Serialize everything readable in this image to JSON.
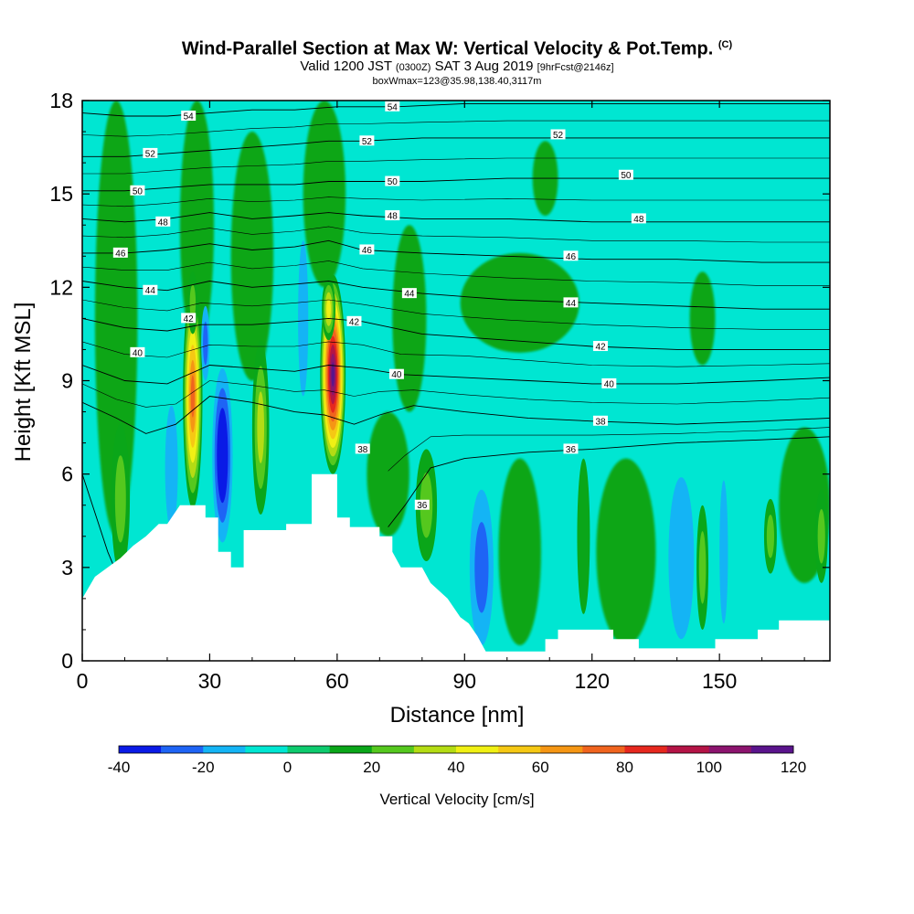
{
  "title": {
    "main": "Wind-Parallel Section at Max W: Vertical Velocity & Pot.Temp.",
    "copyright": "(C)",
    "valid_prefix": "Valid 1200 JST",
    "valid_utc": "(0300Z)",
    "valid_date": "SAT 3 Aug 2019",
    "forecast": "[9hrFcst@2146z]",
    "box": "boxWmax=123@35.98,138.40,3117m"
  },
  "chart_data": {
    "type": "heatmap",
    "xlabel": "Distance [nm]",
    "ylabel": "Height [Kft MSL]",
    "xlim": [
      0,
      176
    ],
    "ylim": [
      0,
      18
    ],
    "x_ticks": [
      "0",
      "30",
      "60",
      "90",
      "120",
      "150"
    ],
    "y_ticks": [
      "0",
      "3",
      "6",
      "9",
      "12",
      "15",
      "18"
    ],
    "colorbar": {
      "label": "Vertical Velocity [cm/s]",
      "levels": [
        -40,
        -30,
        -20,
        -10,
        0,
        10,
        20,
        30,
        40,
        50,
        60,
        70,
        80,
        90,
        100,
        110,
        120
      ],
      "tick_labels": [
        "-40",
        "-20",
        "0",
        "20",
        "40",
        "60",
        "80",
        "100",
        "120"
      ],
      "colors": [
        "#0a1ae6",
        "#1e64f5",
        "#14b4f5",
        "#00e6d2",
        "#0ecb6e",
        "#0aa619",
        "#55c81e",
        "#b4dc14",
        "#f0f014",
        "#f5c814",
        "#f59614",
        "#f0641e",
        "#e6281e",
        "#b41446",
        "#8c146e",
        "#5a148c"
      ]
    },
    "background_level_color": "#00e6d2",
    "terrain_height_kft": [
      [
        0,
        2
      ],
      [
        3,
        2.7
      ],
      [
        6,
        3
      ],
      [
        9,
        3.3
      ],
      [
        12,
        3.7
      ],
      [
        15,
        4
      ],
      [
        18,
        4.4
      ],
      [
        20,
        4.4
      ],
      [
        23,
        5
      ],
      [
        29,
        5
      ],
      [
        29,
        4.6
      ],
      [
        32,
        4.6
      ],
      [
        32,
        3.5
      ],
      [
        35,
        3.5
      ],
      [
        35,
        3
      ],
      [
        38,
        3
      ],
      [
        38,
        4.2
      ],
      [
        48,
        4.2
      ],
      [
        48,
        4.4
      ],
      [
        54,
        4.4
      ],
      [
        54,
        6
      ],
      [
        60,
        6
      ],
      [
        60,
        4.6
      ],
      [
        63,
        4.6
      ],
      [
        63,
        4.3
      ],
      [
        70,
        4.3
      ],
      [
        70,
        4
      ],
      [
        73,
        4
      ],
      [
        73,
        3.5
      ],
      [
        75,
        3
      ],
      [
        80,
        3
      ],
      [
        82,
        2.5
      ],
      [
        86,
        2
      ],
      [
        89,
        1.4
      ],
      [
        91,
        1.2
      ],
      [
        93,
        0.8
      ],
      [
        95,
        0.3
      ],
      [
        109,
        0.3
      ],
      [
        109,
        0.7
      ],
      [
        112,
        0.7
      ],
      [
        112,
        1
      ],
      [
        125,
        1
      ],
      [
        125,
        0.7
      ],
      [
        131,
        0.7
      ],
      [
        131,
        0.4
      ],
      [
        149,
        0.4
      ],
      [
        149,
        0.7
      ],
      [
        159,
        0.7
      ],
      [
        159,
        1
      ],
      [
        164,
        1
      ],
      [
        164,
        1.3
      ],
      [
        176,
        1.3
      ]
    ],
    "vertical_velocity_cells": [
      {
        "x": 26,
        "y": 8.5,
        "rx": 2.3,
        "ry": 3.6,
        "w": 70
      },
      {
        "x": 26,
        "y": 11.5,
        "rx": 1.2,
        "ry": 1.0,
        "w": 20
      },
      {
        "x": 59,
        "y": 9.2,
        "rx": 3.0,
        "ry": 3.2,
        "w": 110
      },
      {
        "x": 58,
        "y": 11.3,
        "rx": 1.6,
        "ry": 1.0,
        "w": 40
      },
      {
        "x": 42,
        "y": 7.5,
        "rx": 2.0,
        "ry": 2.8,
        "w": 30
      },
      {
        "x": 81,
        "y": 5.0,
        "rx": 2.5,
        "ry": 1.8,
        "w": 20
      },
      {
        "x": 33,
        "y": 6.6,
        "rx": 2.4,
        "ry": 2.8,
        "w": -40
      },
      {
        "x": 29,
        "y": 10.2,
        "rx": 1.0,
        "ry": 1.2,
        "w": -20
      },
      {
        "x": 21,
        "y": 6.2,
        "rx": 1.5,
        "ry": 2.0,
        "w": -10
      },
      {
        "x": 52,
        "y": 11.0,
        "rx": 1.2,
        "ry": 2.5,
        "w": -10
      },
      {
        "x": 9,
        "y": 5.2,
        "rx": 2.2,
        "ry": 2.4,
        "w": 20
      },
      {
        "x": 94,
        "y": 3.0,
        "rx": 2.8,
        "ry": 2.5,
        "w": -20
      },
      {
        "x": 141,
        "y": 3.3,
        "rx": 3.0,
        "ry": 2.6,
        "w": -10
      },
      {
        "x": 146,
        "y": 3.0,
        "rx": 1.4,
        "ry": 2.0,
        "w": 20
      },
      {
        "x": 151,
        "y": 3.5,
        "rx": 1.0,
        "ry": 2.3,
        "w": -10
      },
      {
        "x": 162,
        "y": 4.0,
        "rx": 1.5,
        "ry": 1.2,
        "w": 20
      },
      {
        "x": 174,
        "y": 4.0,
        "rx": 1.5,
        "ry": 1.5,
        "w": 20
      },
      {
        "x": 118,
        "y": 4.0,
        "rx": 1.5,
        "ry": 2.5,
        "w": 10
      }
    ],
    "green_bands": [
      {
        "x": 8,
        "y": 11,
        "rx": 5,
        "ry": 7,
        "w": 10
      },
      {
        "x": 27,
        "y": 14,
        "rx": 4,
        "ry": 4,
        "w": 10
      },
      {
        "x": 40,
        "y": 13,
        "rx": 5,
        "ry": 4,
        "w": 10
      },
      {
        "x": 57,
        "y": 15,
        "rx": 5,
        "ry": 3,
        "w": 10
      },
      {
        "x": 77,
        "y": 11,
        "rx": 4,
        "ry": 3,
        "w": 10
      },
      {
        "x": 103,
        "y": 11.5,
        "rx": 14,
        "ry": 1.6,
        "w": 10
      },
      {
        "x": 109,
        "y": 15.5,
        "rx": 3,
        "ry": 1.2,
        "w": 10
      },
      {
        "x": 146,
        "y": 11,
        "rx": 3,
        "ry": 1.5,
        "w": 10
      },
      {
        "x": 103,
        "y": 3.5,
        "rx": 5,
        "ry": 3,
        "w": 10
      },
      {
        "x": 128,
        "y": 3.5,
        "rx": 7,
        "ry": 3,
        "w": 10
      },
      {
        "x": 170,
        "y": 5,
        "rx": 6,
        "ry": 2.5,
        "w": 10
      },
      {
        "x": 72,
        "y": 6,
        "rx": 5,
        "ry": 2,
        "w": 10
      }
    ],
    "theta_contours": [
      {
        "level": "36",
        "pts": [
          [
            0,
            6
          ],
          [
            6,
            3.5
          ],
          [
            10,
            2.2
          ],
          [
            13,
            1.8
          ]
        ],
        "label_at": null
      },
      {
        "level": "36",
        "pts": [
          [
            72,
            4.3
          ],
          [
            76,
            5
          ],
          [
            82,
            6.2
          ],
          [
            90,
            6.5
          ],
          [
            105,
            6.7
          ],
          [
            120,
            6.8
          ],
          [
            140,
            7.0
          ],
          [
            160,
            7.1
          ],
          [
            176,
            7.2
          ]
        ],
        "label_at": [
          80,
          5.0
        ]
      },
      {
        "level": "38",
        "pts": [
          [
            0,
            8.3
          ],
          [
            8,
            7.8
          ],
          [
            15,
            7.3
          ],
          [
            22,
            7.6
          ],
          [
            30,
            8.5
          ],
          [
            40,
            8.3
          ],
          [
            50,
            8.0
          ],
          [
            57,
            7.9
          ],
          [
            64,
            7.6
          ],
          [
            70,
            7.9
          ],
          [
            78,
            8.2
          ],
          [
            90,
            8.0
          ],
          [
            105,
            7.8
          ],
          [
            120,
            7.7
          ],
          [
            140,
            7.6
          ],
          [
            160,
            7.7
          ],
          [
            176,
            7.8
          ]
        ],
        "label_at": [
          66,
          6.8
        ]
      },
      {
        "level": "40",
        "pts": [
          [
            0,
            9.5
          ],
          [
            10,
            9.0
          ],
          [
            20,
            8.9
          ],
          [
            30,
            9.5
          ],
          [
            40,
            9.4
          ],
          [
            50,
            9.3
          ],
          [
            58,
            9.5
          ],
          [
            66,
            9.4
          ],
          [
            75,
            9.2
          ],
          [
            90,
            9.1
          ],
          [
            105,
            9.0
          ],
          [
            120,
            8.9
          ],
          [
            140,
            8.9
          ],
          [
            160,
            9.0
          ],
          [
            176,
            9.1
          ]
        ],
        "label_at": [
          74,
          9.2
        ]
      },
      {
        "level": "42",
        "pts": [
          [
            0,
            11
          ],
          [
            10,
            10.7
          ],
          [
            20,
            10.6
          ],
          [
            28,
            10.8
          ],
          [
            40,
            10.8
          ],
          [
            50,
            10.9
          ],
          [
            58,
            11.0
          ],
          [
            66,
            10.9
          ],
          [
            80,
            10.5
          ],
          [
            100,
            10.3
          ],
          [
            120,
            10.1
          ],
          [
            140,
            10.0
          ],
          [
            160,
            10.0
          ],
          [
            176,
            10.0
          ]
        ],
        "label_at": [
          64,
          10.9
        ]
      },
      {
        "level": "44",
        "pts": [
          [
            0,
            12.2
          ],
          [
            10,
            12.0
          ],
          [
            20,
            11.9
          ],
          [
            30,
            12.2
          ],
          [
            40,
            12.0
          ],
          [
            50,
            12.1
          ],
          [
            58,
            12.2
          ],
          [
            66,
            12.0
          ],
          [
            80,
            11.8
          ],
          [
            100,
            11.6
          ],
          [
            120,
            11.5
          ],
          [
            140,
            11.4
          ],
          [
            160,
            11.3
          ],
          [
            176,
            11.3
          ]
        ],
        "label_at": [
          77,
          11.8
        ]
      },
      {
        "level": "46",
        "pts": [
          [
            0,
            13.1
          ],
          [
            10,
            13.1
          ],
          [
            20,
            13.2
          ],
          [
            30,
            13.4
          ],
          [
            40,
            13.2
          ],
          [
            50,
            13.3
          ],
          [
            58,
            13.5
          ],
          [
            66,
            13.2
          ],
          [
            80,
            13.1
          ],
          [
            100,
            13.0
          ],
          [
            120,
            12.9
          ],
          [
            140,
            12.9
          ],
          [
            160,
            12.8
          ],
          [
            176,
            12.8
          ]
        ],
        "label_at": [
          67,
          13.2
        ]
      },
      {
        "level": "48",
        "pts": [
          [
            0,
            14.2
          ],
          [
            10,
            14.1
          ],
          [
            20,
            14.2
          ],
          [
            30,
            14.4
          ],
          [
            40,
            14.2
          ],
          [
            50,
            14.3
          ],
          [
            58,
            14.4
          ],
          [
            66,
            14.3
          ],
          [
            80,
            14.2
          ],
          [
            100,
            14.2
          ],
          [
            120,
            14.1
          ],
          [
            140,
            14.1
          ],
          [
            160,
            14.1
          ],
          [
            176,
            14.1
          ]
        ],
        "label_at": [
          73,
          14.3
        ]
      },
      {
        "level": "50",
        "pts": [
          [
            0,
            15.1
          ],
          [
            10,
            15.1
          ],
          [
            20,
            15.2
          ],
          [
            30,
            15.3
          ],
          [
            40,
            15.3
          ],
          [
            50,
            15.3
          ],
          [
            58,
            15.4
          ],
          [
            66,
            15.4
          ],
          [
            80,
            15.4
          ],
          [
            100,
            15.5
          ],
          [
            120,
            15.5
          ],
          [
            140,
            15.5
          ],
          [
            160,
            15.5
          ],
          [
            176,
            15.5
          ]
        ],
        "label_at": [
          128,
          15.6
        ]
      },
      {
        "level": "52",
        "pts": [
          [
            0,
            16.2
          ],
          [
            10,
            16.2
          ],
          [
            20,
            16.3
          ],
          [
            30,
            16.4
          ],
          [
            40,
            16.5
          ],
          [
            50,
            16.6
          ],
          [
            58,
            16.7
          ],
          [
            66,
            16.7
          ],
          [
            80,
            16.8
          ],
          [
            100,
            16.8
          ],
          [
            120,
            16.8
          ],
          [
            140,
            16.8
          ],
          [
            160,
            16.8
          ],
          [
            176,
            16.8
          ]
        ],
        "label_at": [
          67,
          16.7
        ]
      },
      {
        "level": "54",
        "pts": [
          [
            0,
            17.6
          ],
          [
            10,
            17.5
          ],
          [
            20,
            17.5
          ],
          [
            30,
            17.6
          ],
          [
            40,
            17.7
          ],
          [
            50,
            17.7
          ],
          [
            60,
            17.8
          ],
          [
            74,
            17.8
          ],
          [
            90,
            17.9
          ],
          [
            110,
            17.9
          ],
          [
            130,
            17.9
          ],
          [
            150,
            17.9
          ],
          [
            176,
            17.9
          ]
        ],
        "label_at": [
          73,
          17.8
        ]
      }
    ],
    "contour_labels": [
      {
        "text": "54",
        "x": 25,
        "y": 17.5
      },
      {
        "text": "54",
        "x": 73,
        "y": 17.8
      },
      {
        "text": "52",
        "x": 16,
        "y": 16.3
      },
      {
        "text": "52",
        "x": 67,
        "y": 16.7
      },
      {
        "text": "52",
        "x": 112,
        "y": 16.9
      },
      {
        "text": "50",
        "x": 13,
        "y": 15.1
      },
      {
        "text": "50",
        "x": 73,
        "y": 15.4
      },
      {
        "text": "50",
        "x": 128,
        "y": 15.6
      },
      {
        "text": "48",
        "x": 19,
        "y": 14.1
      },
      {
        "text": "48",
        "x": 73,
        "y": 14.3
      },
      {
        "text": "48",
        "x": 131,
        "y": 14.2
      },
      {
        "text": "46",
        "x": 9,
        "y": 13.1
      },
      {
        "text": "46",
        "x": 67,
        "y": 13.2
      },
      {
        "text": "46",
        "x": 115,
        "y": 13.0
      },
      {
        "text": "44",
        "x": 16,
        "y": 11.9
      },
      {
        "text": "44",
        "x": 77,
        "y": 11.8
      },
      {
        "text": "44",
        "x": 115,
        "y": 11.5
      },
      {
        "text": "42",
        "x": 25,
        "y": 11.0
      },
      {
        "text": "42",
        "x": 64,
        "y": 10.9
      },
      {
        "text": "42",
        "x": 122,
        "y": 10.1
      },
      {
        "text": "40",
        "x": 13,
        "y": 9.9
      },
      {
        "text": "40",
        "x": 74,
        "y": 9.2
      },
      {
        "text": "40",
        "x": 124,
        "y": 8.9
      },
      {
        "text": "38",
        "x": 66,
        "y": 6.8
      },
      {
        "text": "38",
        "x": 122,
        "y": 7.7
      },
      {
        "text": "36",
        "x": 80,
        "y": 5.0
      },
      {
        "text": "36",
        "x": 115,
        "y": 6.8
      }
    ]
  }
}
